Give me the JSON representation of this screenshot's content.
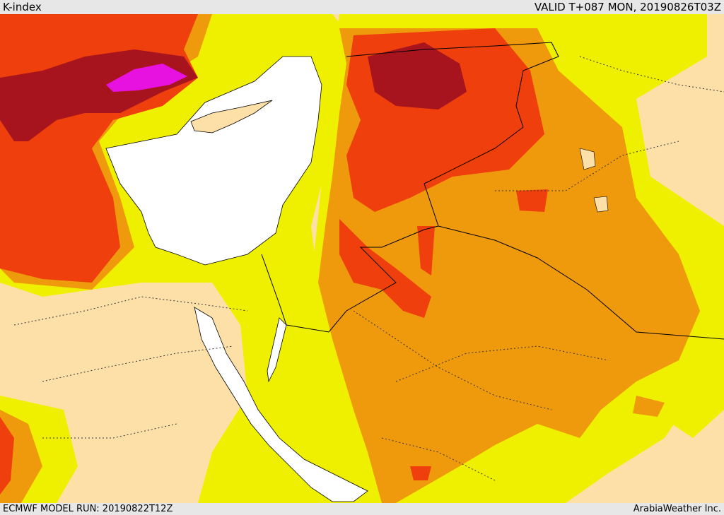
{
  "header": {
    "title": "K-index",
    "valid": "VALID T+087 MON, 20190826T03Z"
  },
  "footer": {
    "run": "ECMWF MODEL RUN: 20190822T12Z",
    "credit": "ArabiaWeather Inc."
  },
  "colors": {
    "land_low": "#fde0a8",
    "yellow": "#eef000",
    "orange": "#ef9a0c",
    "red_orange": "#ee3f0c",
    "dark_red": "#a8141e",
    "magenta": "#e812e0",
    "sea": "#ffffff"
  }
}
